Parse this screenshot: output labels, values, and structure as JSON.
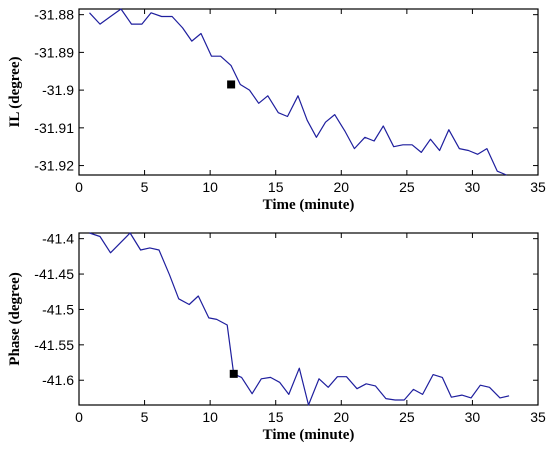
{
  "chart_data": [
    {
      "type": "line",
      "xlabel": "Time (minute)",
      "ylabel": "IL (degree)",
      "xlim": [
        0,
        35
      ],
      "ylim": [
        -31.9225,
        -31.8785
      ],
      "xticks": [
        0,
        5,
        10,
        15,
        20,
        25,
        30,
        35
      ],
      "yticks": [
        -31.88,
        -31.89,
        -31.9,
        -31.91,
        -31.92
      ],
      "ytick_labels": [
        "-31.88",
        "-31.89",
        "-31.9",
        "-31.91",
        "-31.92"
      ],
      "grid": false,
      "series": [
        {
          "color": "#1f1f9e",
          "x": [
            0.8,
            1.6,
            2.4,
            3.2,
            4.0,
            4.8,
            5.5,
            6.3,
            7.1,
            7.9,
            8.6,
            9.3,
            10.1,
            10.8,
            11.6,
            12.3,
            13.0,
            13.7,
            14.4,
            15.2,
            15.9,
            16.7,
            17.4,
            18.1,
            18.8,
            19.5,
            20.3,
            21.0,
            21.8,
            22.5,
            23.2,
            24.0,
            24.7,
            25.4,
            26.1,
            26.8,
            27.5,
            28.2,
            29.0,
            29.7,
            30.4,
            31.1,
            31.9,
            32.6
          ],
          "y": [
            -31.8795,
            -31.8825,
            -31.8805,
            -31.8785,
            -31.8825,
            -31.8825,
            -31.8795,
            -31.8805,
            -31.8805,
            -31.8835,
            -31.887,
            -31.885,
            -31.891,
            -31.891,
            -31.8935,
            -31.8985,
            -31.9,
            -31.9035,
            -31.9015,
            -31.906,
            -31.907,
            -31.9015,
            -31.908,
            -31.9125,
            -31.9085,
            -31.9065,
            -31.911,
            -31.9155,
            -31.9125,
            -31.9135,
            -31.9095,
            -31.915,
            -31.9145,
            -31.9145,
            -31.9165,
            -31.913,
            -31.916,
            -31.9105,
            -31.9155,
            -31.916,
            -31.917,
            -31.9155,
            -31.9215,
            -31.9225
          ]
        }
      ],
      "markers": [
        {
          "x": 11.6,
          "y": -31.8985
        }
      ]
    },
    {
      "type": "line",
      "xlabel": "Time (minute)",
      "ylabel": "Phase (degree)",
      "xlim": [
        0,
        35
      ],
      "ylim": [
        -41.635,
        -41.392
      ],
      "xticks": [
        0,
        5,
        10,
        15,
        20,
        25,
        30,
        35
      ],
      "yticks": [
        -41.4,
        -41.45,
        -41.5,
        -41.55,
        -41.6
      ],
      "ytick_labels": [
        "-41.4",
        "-41.45",
        "-41.5",
        "-41.55",
        "-41.6"
      ],
      "grid": false,
      "series": [
        {
          "color": "#1f1f9e",
          "x": [
            0.8,
            1.6,
            2.4,
            3.2,
            3.9,
            4.7,
            5.4,
            6.1,
            6.9,
            7.6,
            8.4,
            9.1,
            9.9,
            10.5,
            11.3,
            11.8,
            12.4,
            13.2,
            13.9,
            14.6,
            15.3,
            16.0,
            16.8,
            17.5,
            18.3,
            19.0,
            19.7,
            20.4,
            21.2,
            21.9,
            22.6,
            23.4,
            24.1,
            24.8,
            25.5,
            26.2,
            27.0,
            27.7,
            28.4,
            29.2,
            29.9,
            30.6,
            31.3,
            32.1,
            32.8
          ],
          "y": [
            -41.392,
            -41.397,
            -41.42,
            -41.405,
            -41.392,
            -41.416,
            -41.413,
            -41.416,
            -41.451,
            -41.485,
            -41.493,
            -41.481,
            -41.512,
            -41.514,
            -41.522,
            -41.591,
            -41.596,
            -41.619,
            -41.598,
            -41.596,
            -41.603,
            -41.62,
            -41.583,
            -41.635,
            -41.598,
            -41.61,
            -41.595,
            -41.595,
            -41.612,
            -41.605,
            -41.608,
            -41.626,
            -41.628,
            -41.628,
            -41.613,
            -41.62,
            -41.592,
            -41.596,
            -41.624,
            -41.621,
            -41.625,
            -41.607,
            -41.61,
            -41.625,
            -41.622
          ]
        }
      ],
      "markers": [
        {
          "x": 11.8,
          "y": -41.591
        }
      ]
    }
  ]
}
